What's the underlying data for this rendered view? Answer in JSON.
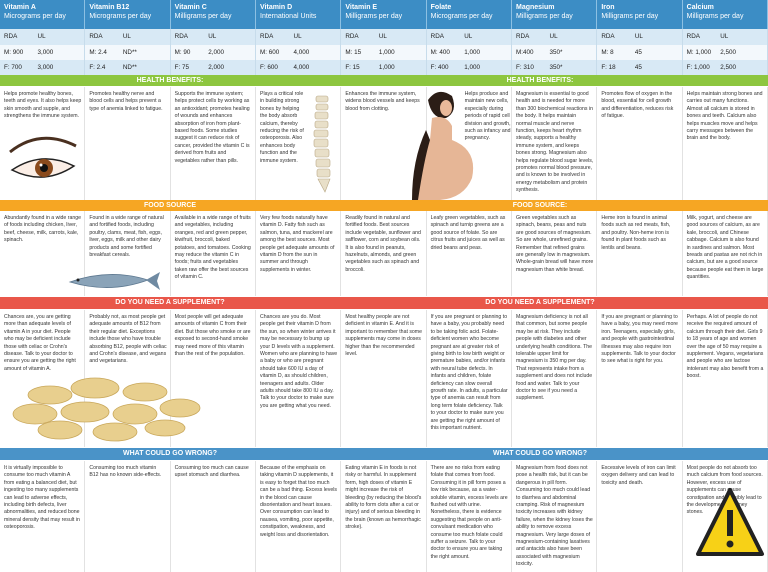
{
  "sections": {
    "benefits": {
      "left": "HEALTH BENEFITS:",
      "right": "HEALTH BENEFITS:"
    },
    "food": {
      "left": "FOOD SOURCE",
      "right": "FOOD SOURCE:"
    },
    "supplement": {
      "left": "DO YOU NEED A SUPPLEMENT?",
      "right": "DO YOU NEED A SUPPLEMENT?"
    },
    "wrong": {
      "left": "WHAT COULD GO WRONG?",
      "right": "WHAT COULD GO WRONG?"
    }
  },
  "columns": [
    {
      "name": "Vitamin A",
      "unit": "Micrograms per day",
      "rda": "RDA",
      "ul": "UL",
      "male_rda": "M: 900",
      "male_ul": "3,000",
      "female_rda": "F: 700",
      "female_ul": "3,000",
      "benefits": "Helps promote healthy bones, teeth and eyes. It also helps keep skin smooth and supple, and strengthens the immune system.",
      "food": "Abundantly found in a wide range of foods including chicken, liver, beef, cheese, milk, carrots, kale, spinach.",
      "supplement": "Chances are, you are getting more than adequate levels of vitamin A in your diet. People who may be deficient include those with celiac or Crohn's disease. Talk to your doctor to ensure you are getting the right amount of vitamin A.",
      "wrong": "It is virtually impossible to consume too much vitamin A from eating a balanced diet, but ingesting too many supplements can lead to adverse effects, including birth defects, liver abnormalities, and reduced bone mineral density that may result in osteoporosis."
    },
    {
      "name": "Vitamin B12",
      "unit": "Micrograms per day",
      "rda": "RDA",
      "ul": "UL",
      "male_rda": "M: 2.4",
      "male_ul": "ND**",
      "female_rda": "F: 2.4",
      "female_ul": "ND**",
      "benefits": "Promotes healthy nerve and blood cells and helps prevent a type of anemia linked to fatigue.",
      "food": "Found in a wide range of natural and fortified foods, including poultry, clams, meat, fish, eggs, liver, eggs, milk and other dairy products and some fortified breakfast cereals.",
      "supplement": "Probably not, as most people get adequate amounts of B12 from their regular diet. Exceptions include those who have trouble absorbing B12, people with celiac and Crohn's disease, and vegans and vegetarians.",
      "wrong": "Consuming too much vitamin B12 has no known side-effects."
    },
    {
      "name": "Vitamin C",
      "unit": "Milligrams per day",
      "rda": "RDA",
      "ul": "UL",
      "male_rda": "M: 90",
      "male_ul": "2,000",
      "female_rda": "F: 75",
      "female_ul": "2,000",
      "benefits": "Supports the immune system; helps protect cells by working as an antioxidant; promotes healing of wounds and enhances absorption of iron from plant-based foods. Some studies suggest it can reduce risk of cancer, provided the vitamin C is derived from fruits and vegetables rather than pills.",
      "food": "Available in a wide range of fruits and vegetables, including oranges, red and green pepper, kiwifruit, broccoli, baked potatoes, and tomatoes. Cooking may reduce the vitamin C in foods; fruits and vegetables taken raw offer the best sources of vitamin C.",
      "supplement": "Most people will get adequate amounts of vitamin C from their diet. But those who smoke or are exposed to second-hand smoke may need more of this vitamin than the rest of the population.",
      "wrong": "Consuming too much can cause upset stomach and diarrhea."
    },
    {
      "name": "Vitamin D",
      "unit": "International Units",
      "rda": "RDA",
      "ul": "UL",
      "male_rda": "M: 600",
      "male_ul": "4,000",
      "female_rda": "F: 600",
      "female_ul": "4,000",
      "benefits": "Plays a critical role in building strong bones by helping the body absorb calcium, thereby reducing the risk of osteoporosis. Also enhances body function and the immune system.",
      "food": "Very few foods naturally have vitamin D. Fatty fish such as salmon, tuna, and mackerel are among the best sources. Most people get adequate amounts of vitamin D from the sun in summer and through supplements in winter.",
      "supplement": "Chances are you do. Most people get their vitamin D from the sun, so when winter arrives it may be necessary to bump up your D levels with a supplement. Women who are planning to have a baby or who are pregnant should take 600 IU a day of vitamin D, as should children, teenagers and adults. Older adults should take 800 IU a day. Talk to your doctor to make sure you are getting what you need.",
      "wrong": "Because of the emphasis on taking vitamin D supplements, it is easy to forget that too much can be a bad thing. Excess levels in the blood can cause disorientation and heart issues. Over consumption can lead to nausea, vomiting, poor appetite, constipation, weakness, and weight loss and disorientation."
    },
    {
      "name": "Vitamin E",
      "unit": "Milligrams per day",
      "rda": "RDA",
      "ul": "UL",
      "male_rda": "M: 15",
      "male_ul": "1,000",
      "female_rda": "F: 15",
      "female_ul": "1,000",
      "benefits": "Enhances the immune system, widens blood vessels and keeps blood from clotting.",
      "food": "Readily found in natural and fortified foods. Best sources include vegetable, sunflower and safflower, corn and soybean oils. It is also found in peanuts, hazelnuts, almonds, and green vegetables such as spinach and broccoli.",
      "supplement": "Most healthy people are not deficient in vitamin E. And it is important to remember that some supplements may come in doses higher than the recommended level.",
      "wrong": "Eating vitamin E in foods is not risky or harmful. In supplement form, high doses of vitamin E might increase the risk of bleeding (by reducing the blood's ability to form clots after a cut or injury) and of serious bleeding in the brain (known as hemorrhagic stroke)."
    },
    {
      "name": "Folate",
      "unit": "Micrograms per day",
      "rda": "RDA",
      "ul": "UL",
      "male_rda": "M: 400",
      "male_ul": "1,000",
      "female_rda": "F: 400",
      "female_ul": "1,000",
      "benefits": "Helps produce and maintain new cells, especially during periods of rapid cell division and growth, such as infancy and pregnancy.",
      "food": "Leafy green vegetables, such as spinach and turnip greens are a good source of folate. So are citrus fruits and juices as well as dried beans and peas.",
      "supplement": "If you are pregnant or planning to have a baby, you probably need to be taking folic acid. Folate-deficient women who become pregnant are at greater risk of giving birth to low birth weight or premature babies, and/or infants with neural tube defects. In infants and children, folate deficiency can slow overall growth rate. In adults, a particular type of anemia can result from long term folate deficiency. Talk to your doctor to make sure you are getting the right amount of this important nutrient.",
      "wrong": "There are no risks from eating folate that comes from food. Consuming it in pill form poses a low risk because, as a water-soluble vitamin, excess levels are flushed out with urine. Nonetheless, there is evidence suggesting that people on anti-convulsant medication who consume too much folate could suffer a seizure. Talk to your doctor to ensure you are taking the right amount."
    },
    {
      "name": "Magnesium",
      "unit": "Milligrams per day",
      "rda": "RDA",
      "ul": "UL",
      "male_rda": "M:400",
      "male_ul": "350*",
      "female_rda": "F: 310",
      "female_ul": "350*",
      "benefits": "Magnesium is essential to good health and is needed for more than 300 biochemical reactions in the body. It helps maintain normal muscle and nerve function, keeps heart rhythm steady, supports a healthy immune system, and keeps bones strong. Magnesium also helps regulate blood sugar levels, promotes normal blood pressure, and is known to be involved in energy metabolism and protein synthesis.",
      "food": "Green vegetables such as spinach, beans, peas and nuts are good sources of magnesium. So are whole, unrefined grains. Remember that refined grains are generally low in magnesium. Whole-grain bread will have more magnesium than white bread.",
      "supplement": "Magnesium deficiency is not all that common, but some people may be at risk. They include people with diabetes and other underlying health conditions. The tolerable upper limit for magnesium is 350 mg per day. That represents intake from a supplement and does not include food and water. Talk to your doctor to see if you need a supplement.",
      "wrong": "Magnesium from food does not pose a health risk, but it can be dangerous in pill form. Consuming too much could lead to diarrhea and abdominal cramping. Risk of magnesium toxicity increases with kidney failure, when the kidney loses the ability to remove excess magnesium. Very large doses of magnesium-containing laxatives and antacids also have been associated with magnesium toxicity."
    },
    {
      "name": "Iron",
      "unit": "Milligrams per day",
      "rda": "RDA",
      "ul": "UL",
      "male_rda": "M: 8",
      "male_ul": "45",
      "female_rda": "F: 18",
      "female_ul": "45",
      "benefits": "Promotes flow of oxygen in the blood, essential for cell growth and differentiation, reduces risk of fatigue.",
      "food": "Heme iron is found in animal foods such as red meats, fish, and poultry. Non-heme iron is found in plant foods such as lentils and beans.",
      "supplement": "If you are pregnant or planning to have a baby, you may need more iron. Teenagers, especially girls, and people with gastrointestinal illnesses may also require iron supplements. Talk to your doctor to see what is right for you.",
      "wrong": "Excessive levels of iron can limit oxygen delivery and can lead to toxicity and death."
    },
    {
      "name": "Calcium",
      "unit": "Milligrams per day",
      "rda": "RDA",
      "ul": "UL",
      "male_rda": "M: 1,000",
      "male_ul": "2,500",
      "female_rda": "F: 1,000",
      "female_ul": "2,500",
      "benefits": "Helps maintain strong bones and carries out many functions. Almost all calcium is stored in bones and teeth. Calcium also helps muscles move and helps carry messages between the brain and the body.",
      "food": "Milk, yogurt, and cheese are good sources of calcium, as are kale, broccoli, and Chinese cabbage. Calcium is also found in sardines and salmon. Most breads and pastas are not rich in calcium, but are a good source because people eat them in large quantities.",
      "supplement": "Perhaps. A lot of people do not receive the required amount of calcium through their diet. Girls 9 to 18 years of age and women over the age of 50 may require a supplement. Vegans, vegetarians and people who are lactose intolerant may also benefit from a boost.",
      "wrong": "Most people do not absorb too much calcium from food sources. However, excess use of supplements can cause constipation and possibly lead to the development of kidney stones."
    }
  ]
}
